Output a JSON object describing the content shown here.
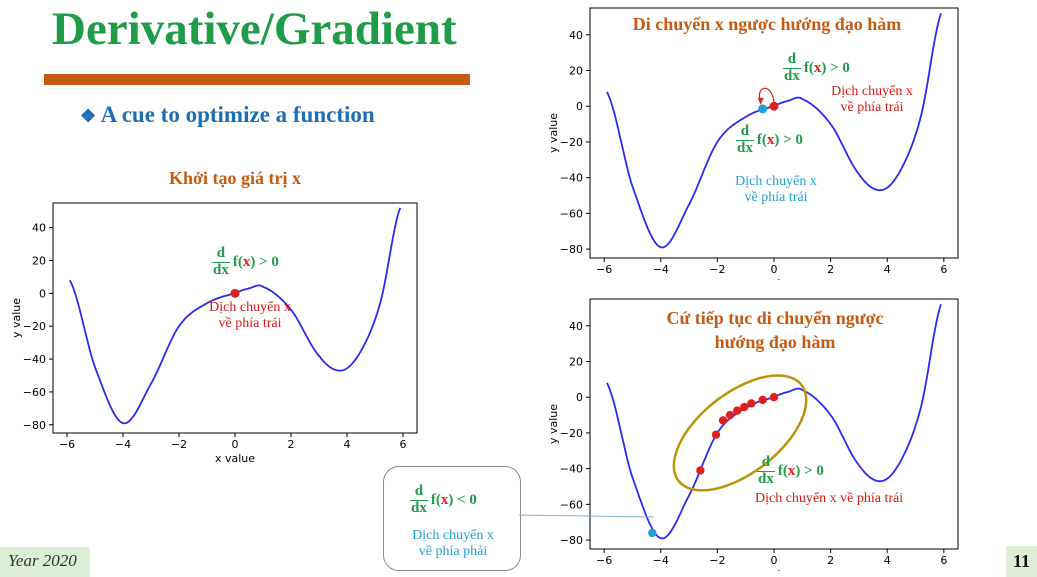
{
  "slide": {
    "title": "Derivative/Gradient",
    "bullet_icon": "diamond-bullet-icon",
    "subtitle": "A cue to optimize a function",
    "page_number": "11",
    "footer": "Year 2020"
  },
  "derivative": {
    "d": "d",
    "dx": "dx",
    "f_open": "f(",
    "x": "x",
    "close_gt": ") > 0",
    "close_lt": ") < 0"
  },
  "panels": {
    "left": {
      "title": "Khởi tạo giá trị x",
      "note_line1": "Dịch chuyển x",
      "note_line2": "về phía trái"
    },
    "top_right": {
      "title": "Di chuyển x ngược hướng đạo hàm",
      "note_red_line1": "Dịch chuyển x",
      "note_red_line2": "về phía trái",
      "note_blue_line1": "Dịch chuyển x",
      "note_blue_line2": "về phía trái"
    },
    "bottom_right": {
      "title_line1": "Cứ tiếp tục di chuyển ngược",
      "title_line2": "hướng đạo hàm",
      "note": "Dịch chuyển x về phía trái"
    },
    "callout": {
      "note_line1": "Dịch chuyển x",
      "note_line2": "về phía phải"
    }
  },
  "colors": {
    "title_green": "#1e9c48",
    "accent_orange": "#c55a11",
    "subtitle_blue": "#1f6eb4",
    "curve_blue": "#2b2bf0",
    "point_red": "#e0201c",
    "point_cyan": "#22a0d6",
    "ellipse_olive": "#b8960a"
  },
  "chart_data": [
    {
      "type": "line",
      "xlabel": "x value",
      "ylabel": "y value",
      "xlim": [
        -6.5,
        6.5
      ],
      "ylim": [
        -85,
        55
      ],
      "xticks": [
        -6,
        -4,
        -2,
        0,
        2,
        4,
        6
      ],
      "yticks": [
        40,
        20,
        0,
        -20,
        -40,
        -60,
        -80
      ],
      "curve": "double-well polynomial, local max near (0.9, 4), minima near (-4, -79) and (3.8, -47)",
      "points": [
        {
          "x": 0,
          "y": 0,
          "color": "red"
        }
      ]
    },
    {
      "type": "line",
      "xlabel": "x value",
      "ylabel": "y value",
      "xlim": [
        -6.5,
        6.5
      ],
      "ylim": [
        -85,
        55
      ],
      "xticks": [
        -6,
        -4,
        -2,
        0,
        2,
        4,
        6
      ],
      "yticks": [
        40,
        20,
        0,
        -20,
        -40,
        -60,
        -80
      ],
      "points": [
        {
          "x": 0,
          "y": 0,
          "color": "red"
        },
        {
          "x": -0.4,
          "y": -1.5,
          "color": "cyan"
        }
      ]
    },
    {
      "type": "line",
      "xlabel": "x value",
      "ylabel": "y value",
      "xlim": [
        -6.5,
        6.5
      ],
      "ylim": [
        -85,
        55
      ],
      "xticks": [
        -6,
        -4,
        -2,
        0,
        2,
        4,
        6
      ],
      "yticks": [
        40,
        20,
        0,
        -20,
        -40,
        -60,
        -80
      ],
      "points": [
        {
          "x": 0,
          "y": 0,
          "color": "red"
        },
        {
          "x": -0.4,
          "y": -1.5,
          "color": "red"
        },
        {
          "x": -0.8,
          "y": -3.5,
          "color": "red"
        },
        {
          "x": -1.05,
          "y": -5.5,
          "color": "red"
        },
        {
          "x": -1.3,
          "y": -7.5,
          "color": "red"
        },
        {
          "x": -1.55,
          "y": -10,
          "color": "red"
        },
        {
          "x": -1.8,
          "y": -13,
          "color": "red"
        },
        {
          "x": -2.05,
          "y": -21,
          "color": "red"
        },
        {
          "x": -2.6,
          "y": -41,
          "color": "red"
        },
        {
          "x": -4.3,
          "y": -76,
          "color": "cyan"
        }
      ]
    }
  ]
}
